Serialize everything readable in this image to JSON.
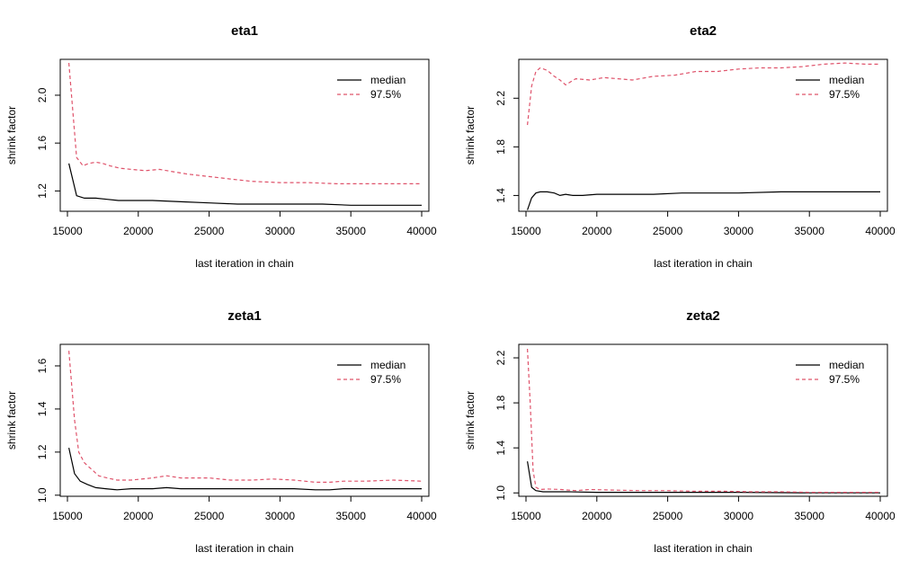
{
  "chart_data": [
    {
      "type": "line",
      "title": "eta1",
      "xlabel": "last iteration in chain",
      "ylabel": "shrink factor",
      "xlim": [
        15000,
        40000
      ],
      "ylim": [
        1.03,
        2.3
      ],
      "xticks": [
        15000,
        20000,
        25000,
        30000,
        35000,
        40000
      ],
      "yticks": [
        1.2,
        1.6,
        2.0
      ],
      "ytick_labels": [
        "1.2",
        "1.6",
        "2.0"
      ],
      "legend": [
        "median",
        "97.5%"
      ],
      "legend_position": "top-right",
      "series": [
        {
          "name": "median",
          "color": "#000000",
          "dash": "solid",
          "x": [
            15100,
            15650,
            16200,
            17000,
            17800,
            18600,
            19500,
            21000,
            23000,
            25000,
            27000,
            29000,
            31000,
            33000,
            35000,
            37000,
            40000
          ],
          "y": [
            1.43,
            1.16,
            1.14,
            1.14,
            1.13,
            1.12,
            1.12,
            1.12,
            1.11,
            1.1,
            1.09,
            1.09,
            1.09,
            1.09,
            1.08,
            1.08,
            1.08
          ]
        },
        {
          "name": "97.5%",
          "color": "#DF536B",
          "dash": "dashed",
          "x": [
            15100,
            15650,
            16100,
            16500,
            17000,
            17500,
            18000,
            18700,
            19500,
            20500,
            21500,
            22500,
            23500,
            25000,
            26500,
            28000,
            30000,
            32000,
            34000,
            36000,
            38000,
            40000
          ],
          "y": [
            2.27,
            1.48,
            1.41,
            1.43,
            1.44,
            1.43,
            1.41,
            1.39,
            1.38,
            1.37,
            1.38,
            1.36,
            1.34,
            1.32,
            1.3,
            1.28,
            1.27,
            1.27,
            1.26,
            1.26,
            1.26,
            1.26
          ]
        }
      ]
    },
    {
      "type": "line",
      "title": "eta2",
      "xlabel": "last iteration in chain",
      "ylabel": "shrink factor",
      "xlim": [
        15000,
        40000
      ],
      "ylim": [
        1.27,
        2.52
      ],
      "xticks": [
        15000,
        20000,
        25000,
        30000,
        35000,
        40000
      ],
      "yticks": [
        1.4,
        1.8,
        2.2
      ],
      "ytick_labels": [
        "1.4",
        "1.8",
        "2.2"
      ],
      "legend": [
        "median",
        "97.5%"
      ],
      "legend_position": "top-right",
      "series": [
        {
          "name": "median",
          "color": "#000000",
          "dash": "solid",
          "x": [
            15100,
            15400,
            15700,
            16000,
            16500,
            17000,
            17400,
            17800,
            18300,
            19000,
            20000,
            22000,
            24000,
            26000,
            28000,
            30000,
            33000,
            36000,
            40000
          ],
          "y": [
            1.28,
            1.38,
            1.42,
            1.43,
            1.43,
            1.42,
            1.4,
            1.41,
            1.4,
            1.4,
            1.41,
            1.41,
            1.41,
            1.42,
            1.42,
            1.42,
            1.43,
            1.43,
            1.43
          ]
        },
        {
          "name": "97.5%",
          "color": "#DF536B",
          "dash": "dashed",
          "x": [
            15100,
            15400,
            15700,
            16000,
            16500,
            17000,
            17400,
            17800,
            18500,
            19500,
            20500,
            21500,
            22500,
            24000,
            25500,
            27000,
            28500,
            30000,
            31500,
            33000,
            34500,
            36000,
            37500,
            39000,
            40000
          ],
          "y": [
            1.98,
            2.3,
            2.42,
            2.45,
            2.43,
            2.38,
            2.35,
            2.31,
            2.36,
            2.35,
            2.37,
            2.36,
            2.35,
            2.38,
            2.39,
            2.42,
            2.42,
            2.44,
            2.45,
            2.45,
            2.46,
            2.48,
            2.49,
            2.48,
            2.48
          ]
        }
      ]
    },
    {
      "type": "line",
      "title": "zeta1",
      "xlabel": "last iteration in chain",
      "ylabel": "shrink factor",
      "xlim": [
        15000,
        40000
      ],
      "ylim": [
        0.995,
        1.7
      ],
      "xticks": [
        15000,
        20000,
        25000,
        30000,
        35000,
        40000
      ],
      "yticks": [
        1.0,
        1.2,
        1.4,
        1.6
      ],
      "ytick_labels": [
        "1.0",
        "1.2",
        "1.4",
        "1.6"
      ],
      "legend": [
        "median",
        "97.5%"
      ],
      "legend_position": "top-right",
      "series": [
        {
          "name": "median",
          "color": "#000000",
          "dash": "solid",
          "x": [
            15100,
            15500,
            15900,
            16400,
            17000,
            17700,
            18500,
            19500,
            21000,
            22000,
            23000,
            25000,
            27000,
            29000,
            31000,
            32500,
            33500,
            34500,
            36000,
            38000,
            40000
          ],
          "y": [
            1.22,
            1.1,
            1.065,
            1.05,
            1.035,
            1.03,
            1.025,
            1.03,
            1.03,
            1.035,
            1.03,
            1.03,
            1.03,
            1.03,
            1.03,
            1.025,
            1.025,
            1.03,
            1.03,
            1.03,
            1.03
          ]
        },
        {
          "name": "97.5%",
          "color": "#DF536B",
          "dash": "dashed",
          "x": [
            15100,
            15500,
            15800,
            16200,
            16700,
            17200,
            17800,
            18500,
            19500,
            21000,
            22000,
            23000,
            25000,
            26500,
            28000,
            29500,
            31000,
            32500,
            33500,
            34500,
            36000,
            38000,
            40000
          ],
          "y": [
            1.67,
            1.35,
            1.2,
            1.15,
            1.12,
            1.09,
            1.08,
            1.07,
            1.07,
            1.08,
            1.09,
            1.08,
            1.08,
            1.07,
            1.07,
            1.075,
            1.07,
            1.06,
            1.06,
            1.065,
            1.065,
            1.07,
            1.065
          ]
        }
      ]
    },
    {
      "type": "line",
      "title": "zeta2",
      "xlabel": "last iteration in chain",
      "ylabel": "shrink factor",
      "xlim": [
        15000,
        40000
      ],
      "ylim": [
        0.97,
        2.32
      ],
      "xticks": [
        15000,
        20000,
        25000,
        30000,
        35000,
        40000
      ],
      "yticks": [
        1.0,
        1.4,
        1.8,
        2.2
      ],
      "ytick_labels": [
        "1.0",
        "1.4",
        "1.8",
        "2.2"
      ],
      "legend": [
        "median",
        "97.5%"
      ],
      "legend_position": "top-right",
      "series": [
        {
          "name": "median",
          "color": "#000000",
          "dash": "solid",
          "x": [
            15100,
            15400,
            15700,
            16200,
            17000,
            18000,
            20000,
            25000,
            30000,
            35000,
            40000
          ],
          "y": [
            1.28,
            1.05,
            1.02,
            1.01,
            1.01,
            1.01,
            1.005,
            1.005,
            1.005,
            1.0,
            1.0
          ]
        },
        {
          "name": "97.5%",
          "color": "#DF536B",
          "dash": "dashed",
          "x": [
            15100,
            15300,
            15500,
            15700,
            16000,
            16500,
            17500,
            18500,
            19500,
            21000,
            23000,
            25000,
            27000,
            29000,
            31000,
            33000,
            35000,
            37000,
            40000
          ],
          "y": [
            2.28,
            1.8,
            1.2,
            1.05,
            1.03,
            1.035,
            1.03,
            1.02,
            1.03,
            1.025,
            1.02,
            1.02,
            1.015,
            1.015,
            1.01,
            1.01,
            1.005,
            1.005,
            1.005
          ]
        }
      ]
    }
  ]
}
